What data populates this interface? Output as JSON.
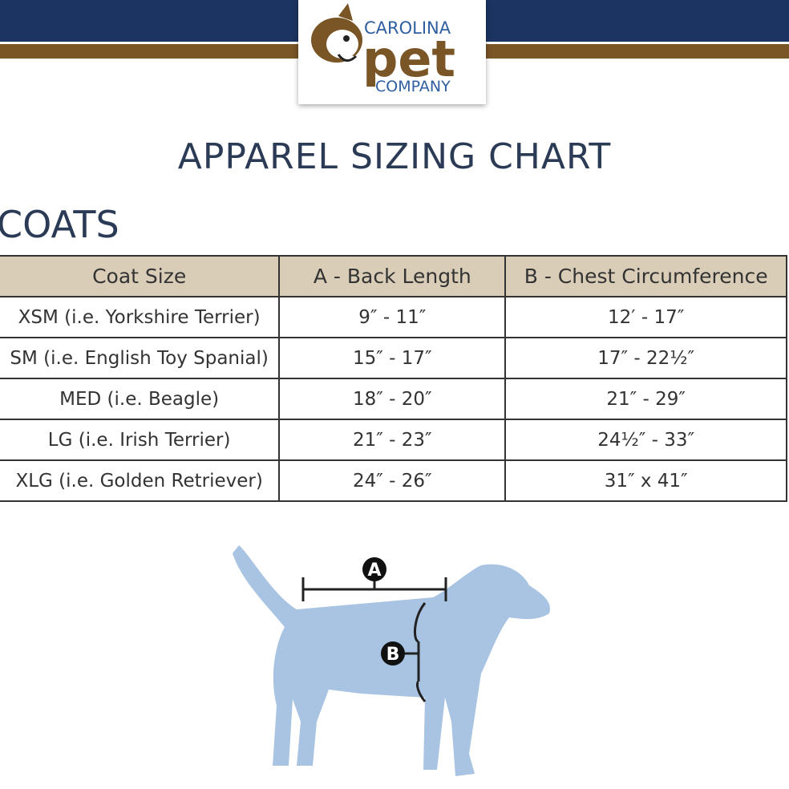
{
  "header": {
    "brand_top": "CAROLINA",
    "brand_main": "pet",
    "brand_bottom": "COMPANY"
  },
  "title": "APPAREL SIZING CHART",
  "section": "COATS",
  "table": {
    "columns": [
      "Coat Size",
      "A - Back Length",
      "B - Chest Circumference"
    ],
    "rows": [
      [
        "XSM (i.e. Yorkshire Terrier)",
        "9″ - 11″",
        "12′ - 17″"
      ],
      [
        "SM (i.e. English Toy Spanial)",
        "15″ - 17″",
        "17″ - 22½″"
      ],
      [
        "MED (i.e. Beagle)",
        "18″ - 20″",
        "21″ - 29″"
      ],
      [
        "LG (i.e. Irish Terrier)",
        "21″ - 23″",
        "24½″ - 33″"
      ],
      [
        "XLG (i.e. Golden Retriever)",
        "24″ - 26″",
        "31″ x 41″"
      ]
    ]
  },
  "diagram": {
    "label_a": "A",
    "label_b": "B"
  }
}
